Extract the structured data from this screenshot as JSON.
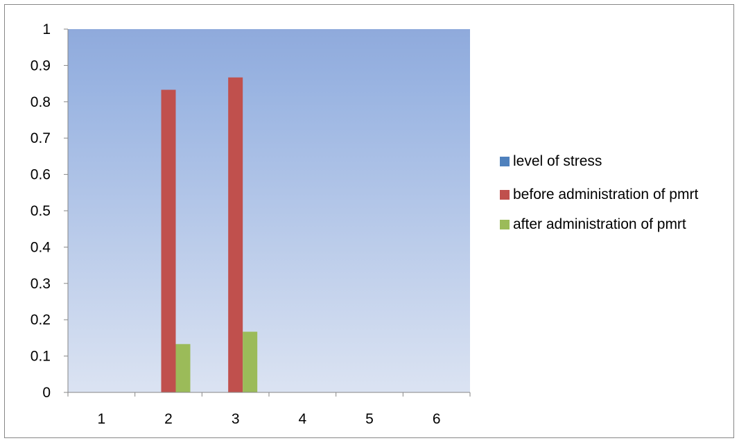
{
  "chart_data": {
    "type": "bar",
    "categories": [
      "1",
      "2",
      "3",
      "4",
      "5",
      "6"
    ],
    "series": [
      {
        "name": "level of stress",
        "color": "#4f81bd",
        "values": [
          0,
          0,
          0,
          0,
          0,
          0
        ]
      },
      {
        "name": "before administration of pmrt",
        "color": "#c0504d",
        "values": [
          0,
          0.833,
          0.867,
          0,
          0,
          0
        ]
      },
      {
        "name": "after administration of pmrt",
        "color": "#9bbb59",
        "values": [
          0,
          0.133,
          0.167,
          0,
          0,
          0
        ]
      }
    ],
    "ylim": [
      0,
      1
    ],
    "yticks": [
      "0",
      "0.1",
      "0.2",
      "0.3",
      "0.4",
      "0.5",
      "0.6",
      "0.7",
      "0.8",
      "0.9",
      "1"
    ],
    "legend_position": "right",
    "grid": false,
    "plot_background": {
      "top": "#8faadc",
      "bottom": "#dbe3f2"
    }
  }
}
